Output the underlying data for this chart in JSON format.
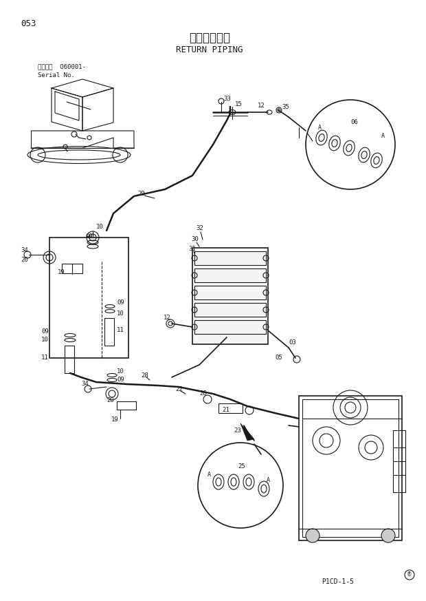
{
  "title_jp": "リターン配管",
  "title_en": "RETURN PIPING",
  "page_num": "053",
  "serial_label": "適用号機  O60001-",
  "serial_label2": "Serial No.",
  "drawing_code": "P1CD-1-5",
  "bg_color": "#ffffff",
  "line_color": "#1a1a1a"
}
